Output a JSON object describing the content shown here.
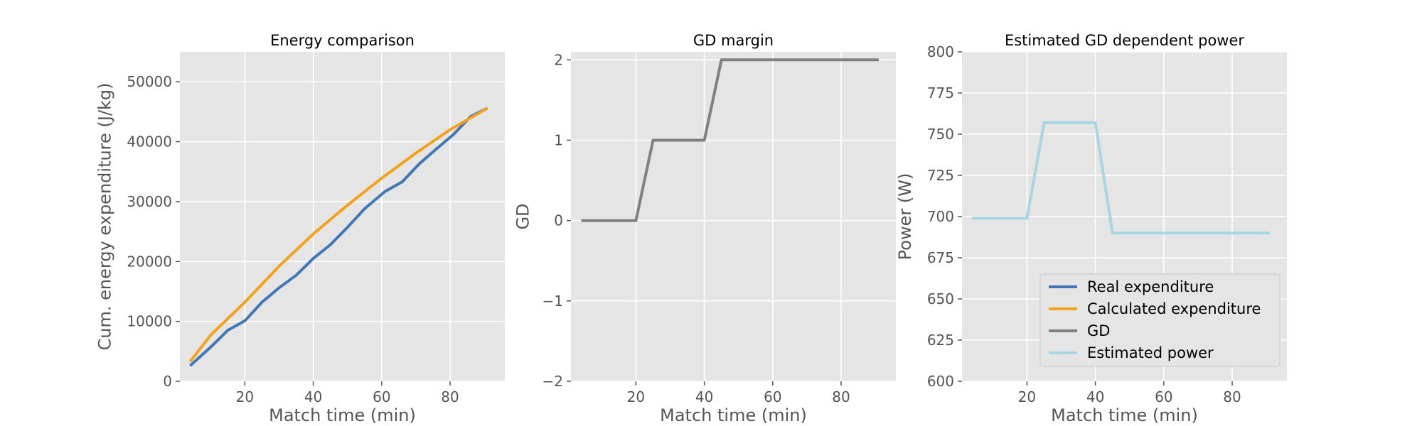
{
  "chart_data": [
    {
      "type": "line",
      "title": "Energy comparison",
      "xlabel": "Match time (min)",
      "ylabel": "Cum. energy expenditure (J/kg)",
      "xlim": [
        1,
        96
      ],
      "ylim": [
        0,
        55000
      ],
      "xticks": [
        20,
        40,
        60,
        80
      ],
      "xtick_labels": [
        "20",
        "40",
        "60",
        "80"
      ],
      "yticks": [
        0,
        10000,
        20000,
        30000,
        40000,
        50000
      ],
      "ytick_labels": [
        "0",
        "10000",
        "20000",
        "30000",
        "40000",
        "50000"
      ],
      "grid": true,
      "series": [
        {
          "name": "Real expenditure",
          "color": "#4177b4",
          "x": [
            4,
            10,
            15,
            20,
            25,
            30,
            35,
            40,
            45,
            50,
            55,
            61,
            66,
            71,
            76,
            81,
            86,
            91
          ],
          "y": [
            2600,
            5700,
            8500,
            10100,
            13200,
            15600,
            17700,
            20500,
            22800,
            25700,
            28800,
            31700,
            33300,
            36300,
            38800,
            41200,
            44200,
            45600
          ]
        },
        {
          "name": "Calculated expenditure",
          "color": "#f4a21c",
          "x": [
            4,
            10,
            20,
            30,
            40,
            50,
            60,
            70,
            80,
            91
          ],
          "y": [
            3300,
            7700,
            13200,
            19200,
            24600,
            29400,
            33900,
            38100,
            42000,
            45600
          ]
        }
      ]
    },
    {
      "type": "line",
      "title": "GD margin",
      "xlabel": "Match time (min)",
      "ylabel": "GD",
      "xlim": [
        1,
        96
      ],
      "ylim": [
        -2,
        2.1
      ],
      "xticks": [
        20,
        40,
        60,
        80
      ],
      "xtick_labels": [
        "20",
        "40",
        "60",
        "80"
      ],
      "yticks": [
        -2,
        -1,
        0,
        1,
        2
      ],
      "ytick_labels": [
        "−2",
        "−1",
        "0",
        "1",
        "2"
      ],
      "grid": true,
      "series": [
        {
          "name": "GD",
          "color": "#808080",
          "x": [
            4,
            20,
            25,
            40,
            45,
            91
          ],
          "y": [
            0,
            0,
            1,
            1,
            2,
            2
          ]
        }
      ]
    },
    {
      "type": "line",
      "title": "Estimated GD dependent power",
      "xlabel": "Match time (min)",
      "ylabel": "Power (W)",
      "xlim": [
        1,
        96
      ],
      "ylim": [
        600,
        800
      ],
      "xticks": [
        20,
        40,
        60,
        80
      ],
      "xtick_labels": [
        "20",
        "40",
        "60",
        "80"
      ],
      "yticks": [
        600,
        625,
        650,
        675,
        700,
        725,
        750,
        775,
        800
      ],
      "ytick_labels": [
        "600",
        "625",
        "650",
        "675",
        "700",
        "725",
        "750",
        "775",
        "800"
      ],
      "grid": true,
      "legend_position": "lower-right",
      "series": [
        {
          "name": "Estimated power",
          "color": "#a6d5e4",
          "x": [
            4,
            20,
            25,
            40,
            45,
            91
          ],
          "y": [
            699,
            699,
            757,
            757,
            690,
            690
          ]
        }
      ]
    }
  ],
  "legend": {
    "entries": [
      {
        "label": "Real expenditure",
        "color": "#4177b4"
      },
      {
        "label": "Calculated expenditure",
        "color": "#f4a21c"
      },
      {
        "label": "GD",
        "color": "#808080"
      },
      {
        "label": "Estimated power",
        "color": "#a6d5e4"
      }
    ]
  }
}
